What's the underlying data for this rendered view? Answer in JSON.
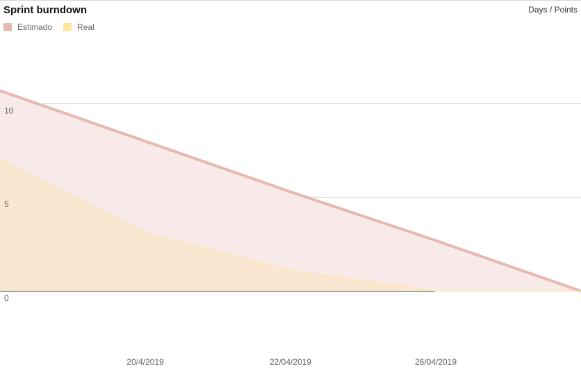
{
  "header": {
    "title": "Sprint burndown",
    "units": "Days / Points"
  },
  "chart_data": {
    "type": "area",
    "title": "Sprint burndown",
    "axis_caption": "Days / Points",
    "x": [
      "",
      "20/4/2019",
      "22/04/2019",
      "26/04/2019",
      ""
    ],
    "x_tick_labels": [
      "20/4/2019",
      "22/04/2019",
      "26/04/2019"
    ],
    "series": [
      {
        "name": "Estimado",
        "values": [
          10.7,
          8.0,
          5.3,
          2.7,
          0
        ],
        "color": "#e6b8af",
        "fill": "#f6e8e5"
      },
      {
        "name": "Real",
        "values": [
          7.0,
          3.1,
          1.1,
          0,
          0
        ],
        "color": "#ffe599",
        "fill": "#f9e7d0"
      }
    ],
    "ylim": [
      -4.3,
      15.5
    ],
    "y_ticks": [
      0,
      5,
      10
    ],
    "grid": true,
    "legend": "top-left"
  }
}
